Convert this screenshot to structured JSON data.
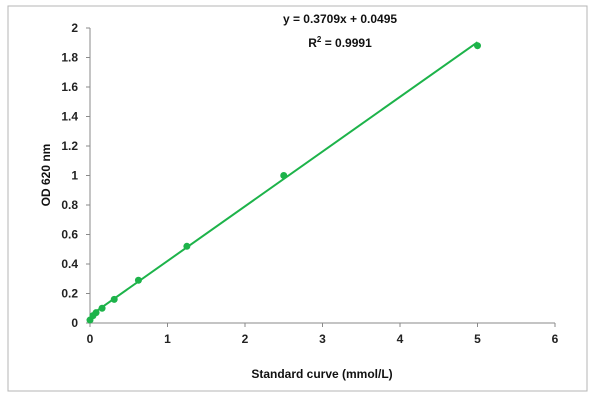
{
  "chart_data": {
    "type": "scatter",
    "title": "",
    "xlabel": "Standard curve (mmol/L)",
    "ylabel": "OD 620 nm",
    "xlim": [
      0,
      6
    ],
    "ylim": [
      0,
      2
    ],
    "x_ticks": [
      "0",
      "1",
      "2",
      "3",
      "4",
      "5",
      "6"
    ],
    "y_ticks": [
      "0",
      "0.2",
      "0.4",
      "0.6",
      "0.8",
      "1",
      "1.2",
      "1.4",
      "1.6",
      "1.8",
      "2"
    ],
    "grid": false,
    "legend": "none",
    "color": "#1db34a",
    "series": [
      {
        "x": [
          0,
          0.039,
          0.078,
          0.156,
          0.3125,
          0.625,
          1.25,
          2.5,
          5
        ],
        "y": [
          0.02,
          0.05,
          0.07,
          0.1,
          0.16,
          0.29,
          0.52,
          1.0,
          1.88
        ]
      }
    ],
    "trendline": {
      "slope": 0.3709,
      "intercept": 0.0495,
      "x_range": [
        0,
        5
      ]
    },
    "annotations": {
      "equation": "y = 0.3709x + 0.0495",
      "r2_label": "R",
      "r2_sup": "2",
      "r2_value": " = 0.9991"
    }
  }
}
